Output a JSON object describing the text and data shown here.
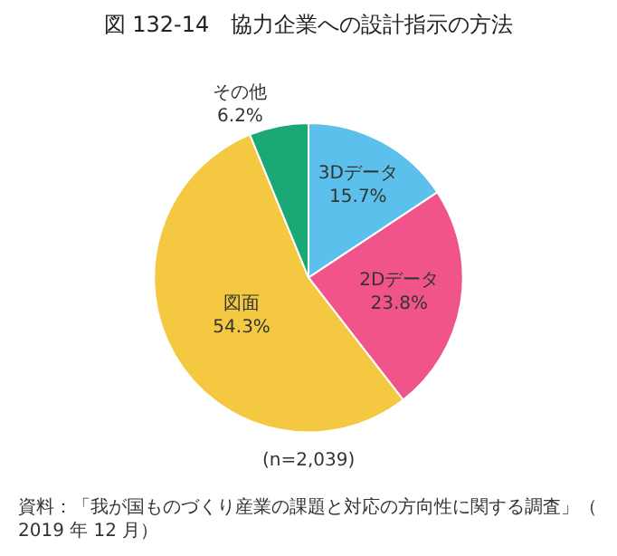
{
  "chart_data": {
    "type": "pie",
    "title": "図 132-14　協力企業への設計指示の方法",
    "categories": [
      "3Dデータ",
      "2Dデータ",
      "図面",
      "その他"
    ],
    "values": [
      15.7,
      23.8,
      54.3,
      6.2
    ],
    "value_labels": [
      "15.7%",
      "23.8%",
      "54.3%",
      "6.2%"
    ],
    "colors": [
      "#5bc0eb",
      "#f0548a",
      "#f5c842",
      "#1aa874"
    ],
    "annotations": [
      "(n=2,039)",
      "資料：「我が国ものづくり産業の課題と対応の方向性に関する調査」（2019 年 12 月）"
    ]
  }
}
